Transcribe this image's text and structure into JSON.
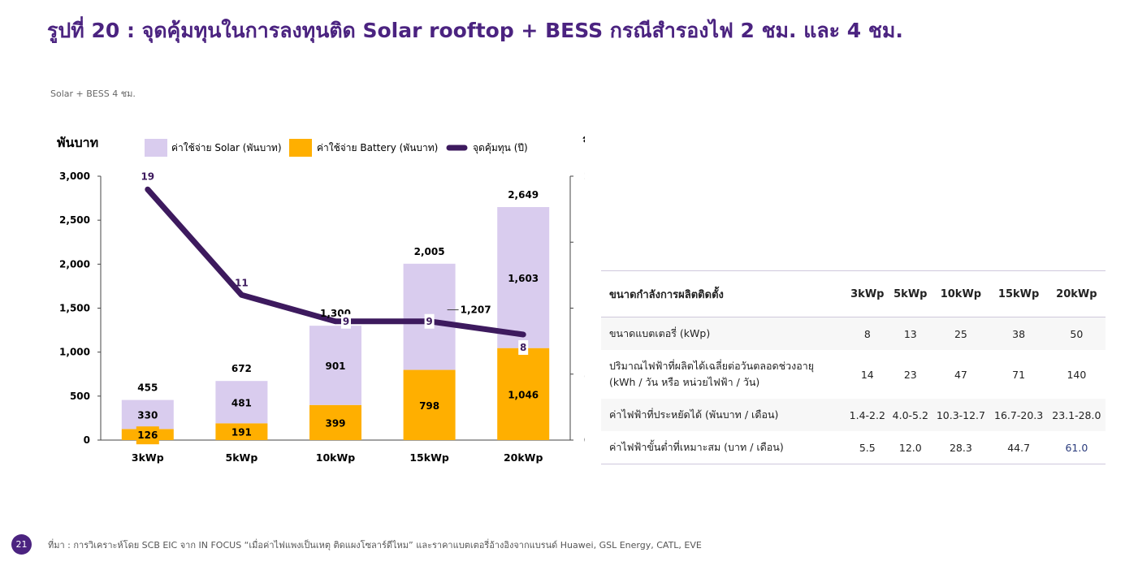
{
  "page": {
    "title": "รูปที่ 20 : จุดคุ้มทุนในการลงทุนติด Solar rooftop + BESS กรณีสำรองไฟ 2 ชม. และ 4 ชม.",
    "subtitle": "Solar + BESS 4 ชม.",
    "page_number": "21",
    "source": "ที่มา : การวิเคราะห์โดย SCB EIC จาก IN FOCUS “เมื่อค่าไฟแพงเป็นเหตุ ติดแผงโซลาร์ดีไหม” และราคาแบตเตอรี่อ้างอิงจากแบรนด์ Huawei, GSL Energy, CATL, EVE"
  },
  "chart_data": {
    "type": "bar",
    "stacked": true,
    "ylabel_left": "พันบาท",
    "ylabel_right": "ปี",
    "categories": [
      "3kWp",
      "5kWp",
      "10kWp",
      "15kWp",
      "20kWp"
    ],
    "ylim_left": [
      0,
      3000
    ],
    "yticks_left": [
      "0",
      "500",
      "1,000",
      "1,500",
      "2,000",
      "2,500",
      "3,000"
    ],
    "ylim_right": [
      0,
      20
    ],
    "yticks_right": [
      "0",
      "5",
      "10",
      "15",
      "20"
    ],
    "legend": [
      "ค่าใช้จ่าย Solar (พันบาท)",
      "ค่าใช้จ่าย Battery (พันบาท)",
      "จุดคุ้มทุน (ปี)"
    ],
    "legend_placement": "top",
    "grid": false,
    "series": [
      {
        "name": "ค่าใช้จ่าย Battery (พันบาท)",
        "values": [
          126,
          191,
          399,
          798,
          1046
        ],
        "labels": [
          "126",
          "191",
          "399",
          "798",
          "1,046"
        ],
        "color": "#ffaf00"
      },
      {
        "name": "ค่าใช้จ่าย Solar (พันบาท)",
        "values": [
          330,
          481,
          901,
          1207,
          1603
        ],
        "labels": [
          "330",
          "481",
          "901",
          "1,207",
          "1,603"
        ],
        "color": "#d9ccee"
      },
      {
        "name": "จุดคุ้มทุน (ปี)",
        "type": "line",
        "axis": "right",
        "values": [
          19,
          11,
          9,
          9,
          8
        ],
        "labels": [
          "19",
          "11",
          "9",
          "9",
          "8"
        ],
        "color": "#3d1a5e"
      }
    ],
    "totals": [
      455,
      672,
      1300,
      2005,
      2649
    ],
    "total_labels": [
      "455",
      "672",
      "1,300",
      "2,005",
      "2,649"
    ]
  },
  "table": {
    "headers": [
      "ขนาดกำลังการผลิตติดตั้ง",
      "3kWp",
      "5kWp",
      "10kWp",
      "15kWp",
      "20kWp"
    ],
    "rows": [
      {
        "label": "ขนาดแบตเตอรี่ (kWp)",
        "label2": "",
        "values": [
          "8",
          "13",
          "25",
          "38",
          "50"
        ]
      },
      {
        "label": "ปริมาณไฟฟ้าที่ผลิตได้เฉลี่ยต่อวันตลอดช่วงอายุ",
        "label2": "(kWh / วัน หรือ หน่วยไฟฟ้า / วัน)",
        "values": [
          "14",
          "23",
          "47",
          "71",
          "140"
        ]
      },
      {
        "label": "ค่าไฟฟ้าที่ประหยัดได้ (พันบาท / เดือน)",
        "label2": "",
        "values": [
          "1.4-2.2",
          "4.0-5.2",
          "10.3-12.7",
          "16.7-20.3",
          "23.1-28.0"
        ]
      },
      {
        "label": "ค่าไฟฟ้าขั้นต่ำที่เหมาะสม (บาท / เดือน)",
        "label2": "",
        "values": [
          "5.5",
          "12.0",
          "28.3",
          "44.7",
          "61.0"
        ]
      }
    ],
    "highlight_color": "#2a3b7c"
  }
}
